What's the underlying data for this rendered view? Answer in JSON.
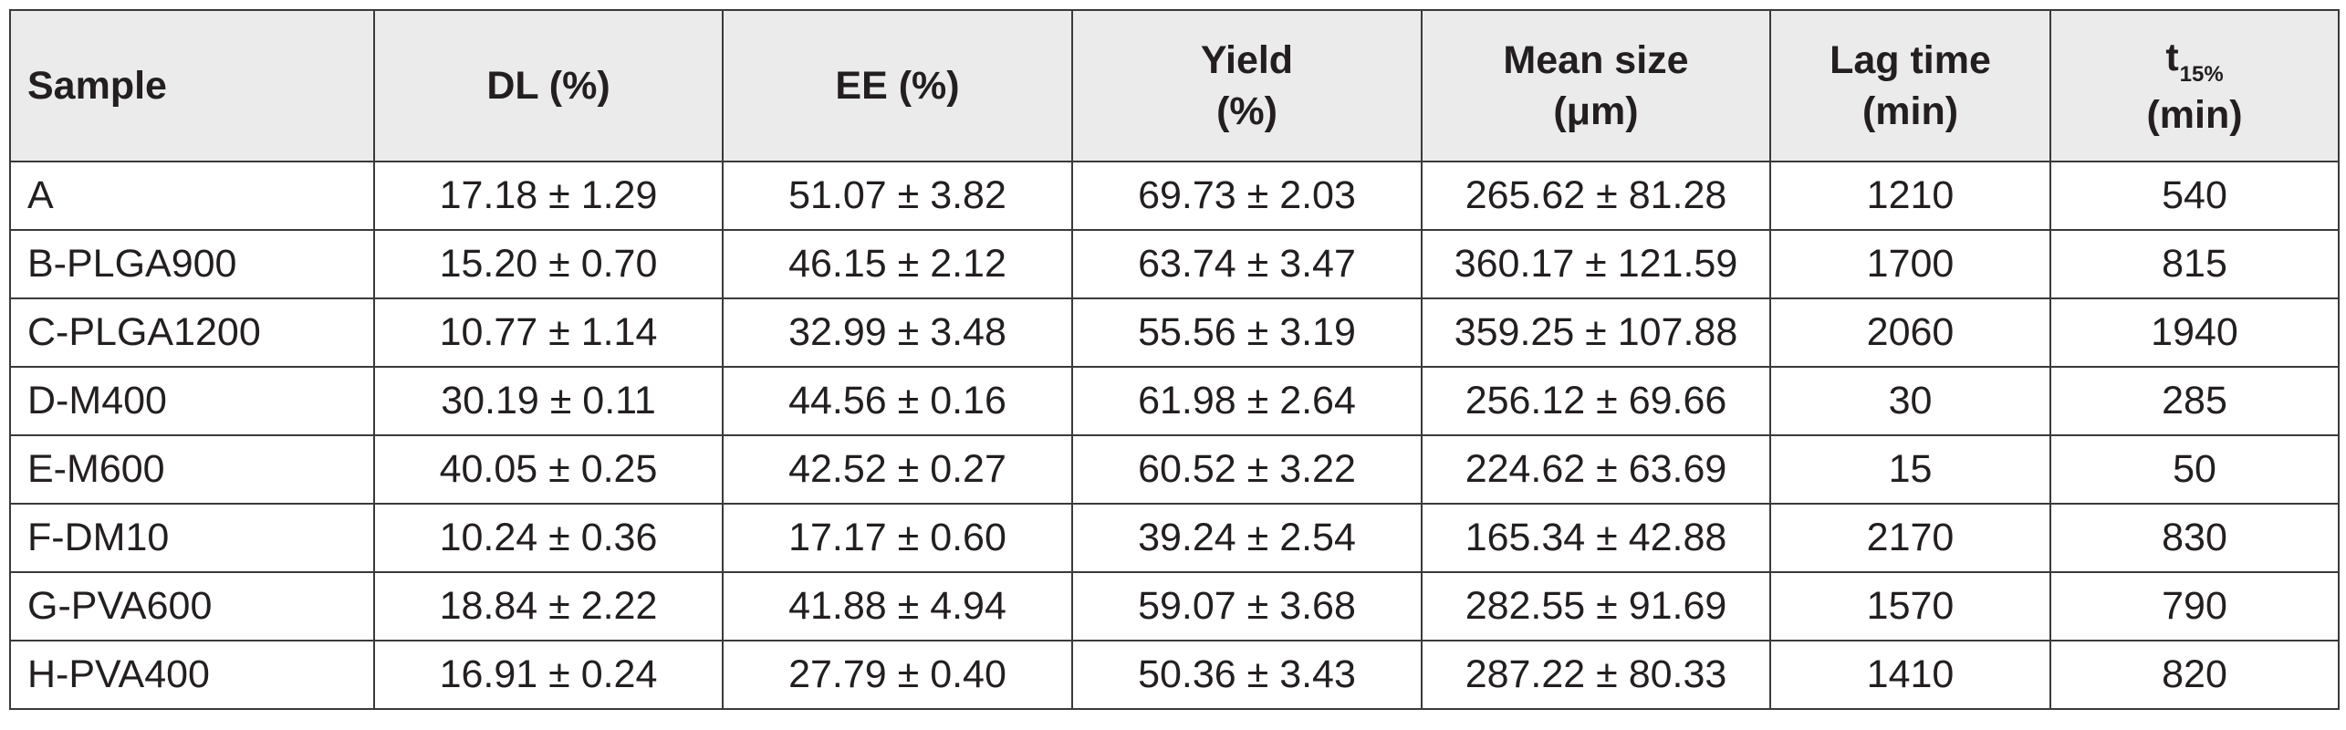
{
  "table": {
    "headers": {
      "sample": "Sample",
      "dl": "DL (%)",
      "ee": "EE (%)",
      "yield_line1": "Yield",
      "yield_line2": "(%)",
      "mean_size_line1": "Mean size",
      "mean_size_line2": "(μm)",
      "lag_time_line1": "Lag time",
      "lag_time_line2": "(min)",
      "t15_main": "t",
      "t15_sub": "15%",
      "t15_line2": "(min)"
    },
    "rows": [
      [
        "A",
        "17.18 ± 1.29",
        "51.07 ± 3.82",
        "69.73 ± 2.03",
        "265.62 ± 81.28",
        "1210",
        "540"
      ],
      [
        "B-PLGA900",
        "15.20 ± 0.70",
        "46.15 ± 2.12",
        "63.74 ± 3.47",
        "360.17 ± 121.59",
        "1700",
        "815"
      ],
      [
        "C-PLGA1200",
        "10.77 ± 1.14",
        "32.99 ± 3.48",
        "55.56 ± 3.19",
        "359.25 ± 107.88",
        "2060",
        "1940"
      ],
      [
        "D-M400",
        "30.19 ± 0.11",
        "44.56 ± 0.16",
        "61.98 ± 2.64",
        "256.12 ± 69.66",
        "30",
        "285"
      ],
      [
        "E-M600",
        "40.05 ± 0.25",
        "42.52 ± 0.27",
        "60.52 ± 3.22",
        "224.62 ± 63.69",
        "15",
        "50"
      ],
      [
        "F-DM10",
        "10.24 ± 0.36",
        "17.17 ± 0.60",
        "39.24 ± 2.54",
        "165.34 ± 42.88",
        "2170",
        "830"
      ],
      [
        "G-PVA600",
        "18.84 ± 2.22",
        "41.88 ± 4.94",
        "59.07 ± 3.68",
        "282.55 ± 91.69",
        "1570",
        "790"
      ],
      [
        "H-PVA400",
        "16.91 ± 0.24",
        "27.79 ± 0.40",
        "50.36 ± 3.43",
        "287.22 ± 80.33",
        "1410",
        "820"
      ]
    ]
  }
}
